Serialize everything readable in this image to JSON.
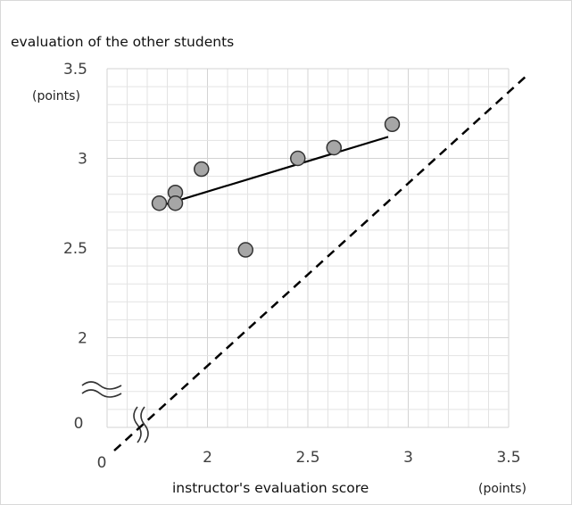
{
  "chart_data": {
    "type": "scatter",
    "title": "",
    "ylabel": "evaluation of the other students",
    "ylabel_unit": "(points)",
    "xlabel": "instructor's evaluation score",
    "xlabel_unit": "(points)",
    "origin_x_label": "0",
    "origin_y_label": "0",
    "x_ticks": [
      "2",
      "2.5",
      "3",
      "3.5"
    ],
    "y_ticks": [
      "3.5",
      "3",
      "2.5",
      "2"
    ],
    "xlim": [
      1.5,
      3.5
    ],
    "ylim": [
      1.5,
      3.5
    ],
    "axis_break": true,
    "grid": true,
    "points": [
      {
        "x": 1.76,
        "y": 2.75
      },
      {
        "x": 1.84,
        "y": 2.81
      },
      {
        "x": 1.84,
        "y": 2.75
      },
      {
        "x": 1.97,
        "y": 2.94
      },
      {
        "x": 2.19,
        "y": 2.49
      },
      {
        "x": 2.45,
        "y": 3.0
      },
      {
        "x": 2.63,
        "y": 3.06
      },
      {
        "x": 2.92,
        "y": 3.19
      }
    ],
    "trendline": {
      "x": [
        1.75,
        2.9
      ],
      "y": [
        2.73,
        3.12
      ]
    },
    "reference_line": {
      "type": "y=x",
      "style": "dashed"
    },
    "colors": {
      "marker_fill": "#a6a6a6",
      "marker_stroke": "#333333",
      "grid": "#e3e3e3",
      "lines": "#000000"
    }
  }
}
